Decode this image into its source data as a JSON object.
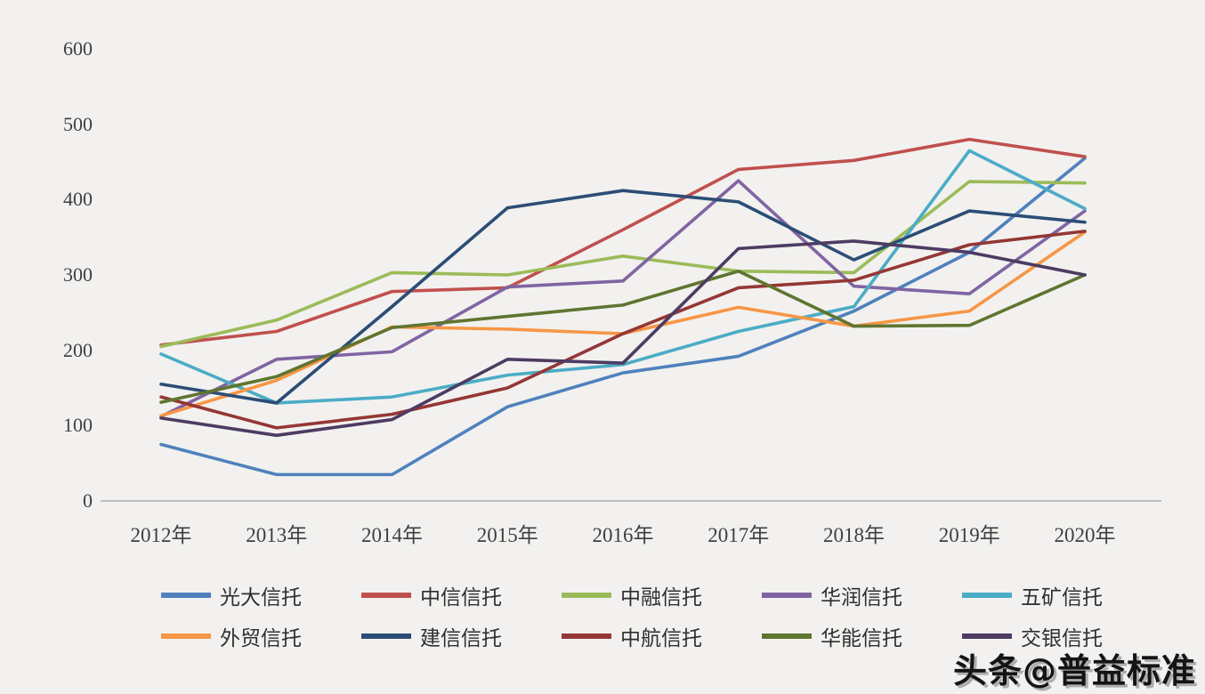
{
  "watermark": "头条@普益标准",
  "chart_data": {
    "type": "line",
    "title": "",
    "xlabel": "",
    "ylabel": "",
    "ylim": [
      0,
      600
    ],
    "yticks": [
      0,
      100,
      200,
      300,
      400,
      500,
      600
    ],
    "grid": false,
    "legend_position": "bottom",
    "categories": [
      "2012年",
      "2013年",
      "2014年",
      "2015年",
      "2016年",
      "2017年",
      "2018年",
      "2019年",
      "2020年"
    ],
    "series": [
      {
        "name": "光大信托",
        "color": "#4F81BD",
        "values": [
          75,
          35,
          35,
          125,
          170,
          192,
          252,
          330,
          455
        ]
      },
      {
        "name": "中信信托",
        "color": "#C0504D",
        "values": [
          207,
          225,
          278,
          283,
          360,
          440,
          452,
          480,
          457
        ]
      },
      {
        "name": "中融信托",
        "color": "#9BBB59",
        "values": [
          205,
          240,
          303,
          300,
          325,
          305,
          303,
          424,
          422
        ]
      },
      {
        "name": "华润信托",
        "color": "#8064A2",
        "values": [
          112,
          188,
          198,
          284,
          292,
          425,
          285,
          275,
          385
        ]
      },
      {
        "name": "五矿信托",
        "color": "#4BACC6",
        "values": [
          195,
          130,
          138,
          167,
          181,
          225,
          258,
          465,
          388
        ]
      },
      {
        "name": "外贸信托",
        "color": "#F79646",
        "values": [
          113,
          160,
          231,
          228,
          222,
          257,
          232,
          252,
          357
        ]
      },
      {
        "name": "建信信托",
        "color": "#2C4D75",
        "values": [
          155,
          130,
          258,
          389,
          412,
          397,
          320,
          385,
          370
        ]
      },
      {
        "name": "中航信托",
        "color": "#943735",
        "values": [
          138,
          97,
          115,
          150,
          222,
          283,
          293,
          340,
          358
        ]
      },
      {
        "name": "华能信托",
        "color": "#5F7530",
        "values": [
          131,
          165,
          230,
          245,
          260,
          305,
          232,
          233,
          300
        ]
      },
      {
        "name": "交银信托",
        "color": "#4D3B62",
        "values": [
          110,
          87,
          108,
          188,
          183,
          335,
          345,
          330,
          300
        ]
      }
    ]
  }
}
